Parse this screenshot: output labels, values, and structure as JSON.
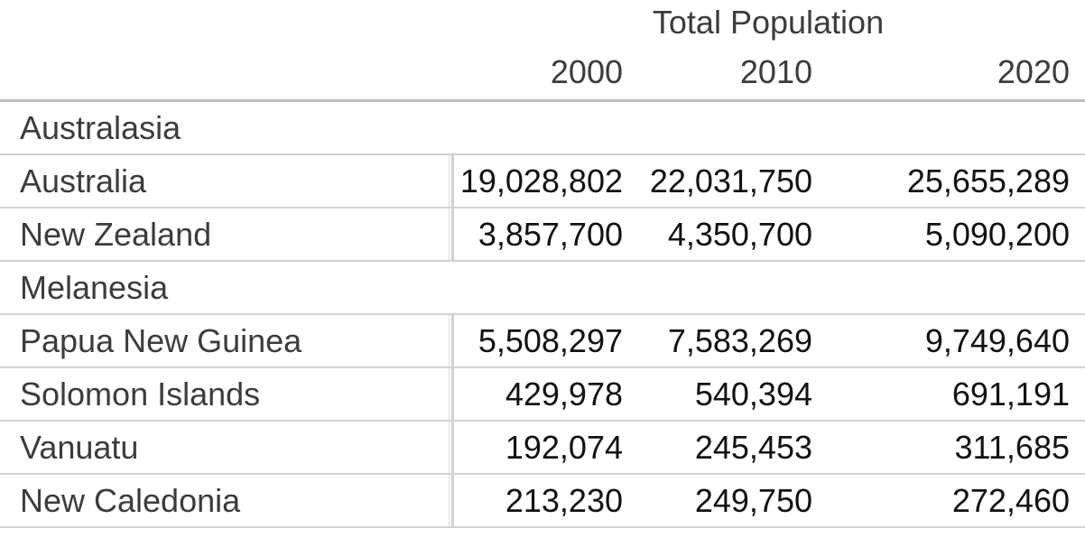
{
  "table": {
    "title": "Total Population",
    "year_headers": [
      "2000",
      "2010",
      "2020"
    ],
    "groups": [
      {
        "name": "Australasia",
        "rows": [
          {
            "name": "Australia",
            "values": [
              "19,028,802",
              "22,031,750",
              "25,655,289"
            ]
          },
          {
            "name": "New Zealand",
            "values": [
              "3,857,700",
              "4,350,700",
              "5,090,200"
            ]
          }
        ]
      },
      {
        "name": "Melanesia",
        "rows": [
          {
            "name": "Papua New Guinea",
            "values": [
              "5,508,297",
              "7,583,269",
              "9,749,640"
            ]
          },
          {
            "name": "Solomon Islands",
            "values": [
              "429,978",
              "540,394",
              "691,191"
            ]
          },
          {
            "name": "Vanuatu",
            "values": [
              "192,074",
              "245,453",
              "311,685"
            ]
          },
          {
            "name": "New Caledonia",
            "values": [
              "213,230",
              "249,750",
              "272,460"
            ]
          }
        ]
      }
    ]
  },
  "colors": {
    "label_text": "#3c3c3c",
    "value_text": "#121212",
    "header_rule": "#bdbdbd",
    "row_rule": "#d3d3d3",
    "background": "#ffffff"
  },
  "chart_data": {
    "type": "table",
    "title": "Total Population",
    "columns": [
      "2000",
      "2010",
      "2020"
    ],
    "groups": [
      {
        "group": "Australasia",
        "rows": [
          {
            "label": "Australia",
            "values": [
              19028802,
              22031750,
              25655289
            ]
          },
          {
            "label": "New Zealand",
            "values": [
              3857700,
              4350700,
              5090200
            ]
          }
        ]
      },
      {
        "group": "Melanesia",
        "rows": [
          {
            "label": "Papua New Guinea",
            "values": [
              5508297,
              7583269,
              9749640
            ]
          },
          {
            "label": "Solomon Islands",
            "values": [
              429978,
              540394,
              691191
            ]
          },
          {
            "label": "Vanuatu",
            "values": [
              192074,
              245453,
              311685
            ]
          },
          {
            "label": "New Caledonia",
            "values": [
              213230,
              249750,
              272460
            ]
          }
        ]
      }
    ]
  }
}
